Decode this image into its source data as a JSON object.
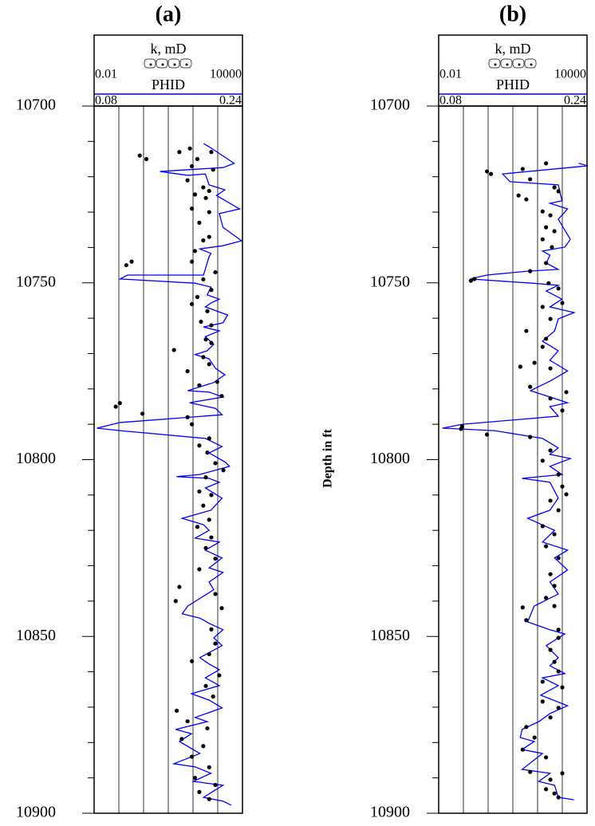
{
  "chart_data": [
    {
      "type": "well-log",
      "title": "(a)",
      "ylim": [
        10700,
        10900
      ],
      "yticks": [
        10700,
        10750,
        10800,
        10850,
        10900
      ],
      "yminorticks": [
        10710,
        10720,
        10730,
        10740,
        10760,
        10770,
        10780,
        10790,
        10810,
        10820,
        10830,
        10840,
        10860,
        10870,
        10880,
        10890
      ],
      "klim": [
        0.01,
        10000
      ],
      "kticks": [
        0.01,
        0.1,
        1,
        10,
        100,
        1000,
        10000
      ],
      "k_log_scale": true,
      "xlim": [
        0.08,
        0.24
      ],
      "phid": {
        "name": "PHID",
        "color": "#0000ff",
        "depth": [
          10710.6,
          10711.5,
          10716.2,
          10717.4,
          10718.5,
          10719.6,
          10719.2,
          10722.3,
          10723.7,
          10725.3,
          10729.1,
          10730.4,
          10734.3,
          10738.1,
          10739.5,
          10740.4,
          10741.7,
          10742.6,
          10747.8,
          10747.8,
          10748.9,
          10750.1,
          10751.2,
          10753.4,
          10754.6,
          10755.7,
          10756.8,
          10759.1,
          10761.3,
          10762.5,
          10763.6,
          10765.2,
          10767.4,
          10769.2,
          10770.3,
          10771.5,
          10774.2,
          10776.0,
          10778.2,
          10780.5,
          10780.9,
          10782.3,
          10783.9,
          10785.5,
          10787.3,
          10789.5,
          10791.1,
          10791.8,
          10794.0,
          10796.3,
          10798.1,
          10800.8,
          10801.9,
          10804.2,
          10804.8,
          10805.3,
          10806.4,
          10808.0,
          10810.9,
          10814.3,
          10816.6,
          10818.4,
          10820.0,
          10822.2,
          10823.3,
          10825.6,
          10827.8,
          10830.6,
          10831.9,
          10834.6,
          10836.8,
          10841.4,
          10843.6,
          10844.8,
          10846.3,
          10848.1,
          10850.4,
          10852.6,
          10856.0,
          10857.8,
          10859.4,
          10861.7,
          10863.9,
          10866.2,
          10868.0,
          10870.2,
          10872.9,
          10874.1,
          10876.3,
          10877.5,
          10879.7,
          10883.1,
          10886.0,
          10886.9,
          10888.7,
          10891.0,
          10892.1,
          10895.5,
          10896.6,
          10897.7
        ],
        "values": [
          0.198,
          0.204,
          0.231,
          0.219,
          0.151,
          0.181,
          0.2,
          0.204,
          0.221,
          0.212,
          0.237,
          0.215,
          0.219,
          0.239,
          0.219,
          0.194,
          0.206,
          0.204,
          0.198,
          0.116,
          0.108,
          0.189,
          0.206,
          0.202,
          0.215,
          0.206,
          0.2,
          0.224,
          0.219,
          0.198,
          0.215,
          0.2,
          0.209,
          0.202,
          0.189,
          0.204,
          0.211,
          0.221,
          0.209,
          0.181,
          0.204,
          0.219,
          0.183,
          0.211,
          0.218,
          0.108,
          0.083,
          0.108,
          0.2,
          0.218,
          0.204,
          0.222,
          0.226,
          0.194,
          0.169,
          0.204,
          0.215,
          0.2,
          0.218,
          0.206,
          0.175,
          0.198,
          0.204,
          0.189,
          0.215,
          0.2,
          0.218,
          0.204,
          0.219,
          0.204,
          0.209,
          0.181,
          0.175,
          0.194,
          0.204,
          0.219,
          0.209,
          0.218,
          0.194,
          0.204,
          0.215,
          0.2,
          0.215,
          0.185,
          0.204,
          0.218,
          0.189,
          0.202,
          0.168,
          0.185,
          0.172,
          0.194,
          0.166,
          0.189,
          0.206,
          0.187,
          0.219,
          0.198,
          0.219,
          0.228
        ]
      },
      "k": {
        "name": "k, mD",
        "color": "#000000",
        "depth": [
          10712,
          10714,
          10715,
          10713,
          10713,
          10715,
          10717,
          10718,
          10721,
          10723,
          10724,
          10725,
          10726,
          10729,
          10730,
          10733,
          10737,
          10738,
          10741,
          10744,
          10745,
          10744,
          10747,
          10749,
          10752,
          10754,
          10756,
          10758,
          10761,
          10762,
          10766,
          10769,
          10767,
          10771,
          10773,
          10775,
          10778,
          10779,
          10782,
          10785,
          10784,
          10787,
          10788,
          10790,
          10794,
          10796,
          10798,
          10801,
          10803,
          10805,
          10809,
          10810,
          10813,
          10817,
          10819,
          10822,
          10825,
          10828,
          10831,
          10836,
          10840,
          10838,
          10842,
          10848,
          10852,
          10855,
          10857,
          10861,
          10864,
          10867,
          10871,
          10874,
          10876,
          10879,
          10881,
          10884,
          10887,
          10890,
          10892,
          10894,
          10896
        ],
        "values": [
          75,
          0.7,
          1.3,
          28,
          550,
          150,
          90,
          650,
          60,
          260,
          450,
          120,
          330,
          90,
          450,
          180,
          450,
          260,
          120,
          0.33,
          0.2,
          90,
          800,
          260,
          550,
          150,
          90,
          380,
          210,
          550,
          330,
          17,
          550,
          260,
          450,
          60,
          950,
          180,
          1450,
          0.075,
          0.11,
          0.9,
          60,
          90,
          450,
          180,
          380,
          800,
          1700,
          330,
          180,
          550,
          260,
          450,
          150,
          550,
          330,
          800,
          180,
          28,
          20,
          800,
          1450,
          550,
          800,
          450,
          90,
          1150,
          330,
          650,
          22,
          60,
          380,
          35,
          260,
          90,
          450,
          120,
          800,
          180,
          450
        ]
      }
    },
    {
      "type": "well-log",
      "title": "(b)",
      "ylabel": "Depth in ft",
      "ylim": [
        10700,
        10900
      ],
      "yticks": [
        10700,
        10750,
        10800,
        10850,
        10900
      ],
      "yminorticks": [
        10710,
        10720,
        10730,
        10740,
        10760,
        10770,
        10780,
        10790,
        10810,
        10820,
        10830,
        10840,
        10860,
        10870,
        10880,
        10890
      ],
      "klim": [
        0.01,
        10000
      ],
      "kticks": [
        0.01,
        0.1,
        1,
        10,
        100,
        1000,
        10000
      ],
      "k_log_scale": true,
      "xlim": [
        0.08,
        0.24
      ],
      "phid": {
        "name": "PHID",
        "color": "#0000ff",
        "depth": [
          10716.2,
          10716.9,
          10719.2,
          10721.4,
          10722.3,
          10726.8,
          10727.5,
          10729.1,
          10732.0,
          10737.7,
          10739.9,
          10741.0,
          10742.2,
          10744.4,
          10746.2,
          10746.7,
          10747.8,
          10748.9,
          10750.1,
          10750.7,
          10752.3,
          10754.6,
          10756.8,
          10758.4,
          10760.2,
          10763.6,
          10766.5,
          10769.2,
          10771.9,
          10774.9,
          10777.8,
          10780.5,
          10781.6,
          10783.9,
          10785.0,
          10787.7,
          10790.0,
          10791.1,
          10791.8,
          10794.0,
          10796.7,
          10798.5,
          10799.7,
          10801.9,
          10804.2,
          10805.3,
          10806.4,
          10810.9,
          10814.3,
          10816.6,
          10820.0,
          10823.3,
          10825.6,
          10827.8,
          10831.2,
          10834.6,
          10838.0,
          10841.4,
          10845.9,
          10848.1,
          10849.3,
          10852.6,
          10856.0,
          10858.3,
          10860.5,
          10861.7,
          10863.9,
          10866.6,
          10869.6,
          10871.8,
          10874.1,
          10876.3,
          10878.6,
          10879.7,
          10882.0,
          10883.1,
          10887.6,
          10888.7,
          10891.0,
          10892.1,
          10895.5,
          10896.2
        ],
        "values": [
          0.231,
          0.241,
          0.149,
          0.157,
          0.209,
          0.213,
          0.2,
          0.219,
          0.209,
          0.222,
          0.216,
          0.192,
          0.2,
          0.196,
          0.209,
          0.176,
          0.132,
          0.114,
          0.181,
          0.209,
          0.196,
          0.213,
          0.2,
          0.226,
          0.209,
          0.205,
          0.192,
          0.209,
          0.2,
          0.219,
          0.2,
          0.179,
          0.192,
          0.219,
          0.2,
          0.209,
          0.106,
          0.084,
          0.14,
          0.192,
          0.209,
          0.2,
          0.222,
          0.2,
          0.213,
          0.17,
          0.2,
          0.209,
          0.2,
          0.176,
          0.205,
          0.192,
          0.219,
          0.205,
          0.219,
          0.2,
          0.209,
          0.183,
          0.176,
          0.2,
          0.216,
          0.196,
          0.209,
          0.2,
          0.216,
          0.192,
          0.209,
          0.19,
          0.219,
          0.2,
          0.188,
          0.17,
          0.168,
          0.183,
          0.17,
          0.192,
          0.17,
          0.2,
          0.188,
          0.205,
          0.209,
          0.226
        ]
      },
      "k": {
        "name": "k, mD",
        "color": "#000000",
        "depth": [
          10718.5,
          10719.2,
          10717.8,
          10716.2,
          10720.7,
          10725.3,
          10723.0,
          10724.1,
          10726.4,
          10729.8,
          10730.9,
          10734.3,
          10735.4,
          10737.7,
          10739.9,
          10744.4,
          10746.7,
          10751.6,
          10750.1,
          10748.9,
          10749.4,
          10755.7,
          10756.8,
          10760.2,
          10763.6,
          10765.8,
          10768.1,
          10772.6,
          10774.2,
          10773.7,
          10779.4,
          10780.9,
          10782.7,
          10786.1,
          10790.6,
          10791.3,
          10792.9,
          10793.6,
          10797.4,
          10800.3,
          10804.2,
          10807.6,
          10809.8,
          10811.6,
          10814.3,
          10818.8,
          10821.1,
          10824.5,
          10827.8,
          10832.4,
          10835.7,
          10839.1,
          10841.8,
          10845.4,
          10841.4,
          10848.1,
          10850.4,
          10853.8,
          10857.2,
          10859.9,
          10862.8,
          10864.4,
          10868.4,
          10870.2,
          10872.9,
          10875.6,
          10878.6,
          10882.0,
          10884.2,
          10888.3,
          10890.5,
          10888.7,
          10893.2,
          10894.4,
          10895.5
        ],
        "values": [
          0.9,
          1.3,
          25,
          220,
          50,
          17,
          480,
          700,
          35,
          160,
          330,
          220,
          480,
          160,
          380,
          220,
          50,
          700,
          280,
          0.28,
          0.2,
          1000,
          160,
          330,
          35,
          220,
          160,
          75,
          330,
          20,
          50,
          1450,
          330,
          1000,
          0.09,
          0.08,
          0.9,
          50,
          330,
          160,
          700,
          1000,
          1450,
          330,
          700,
          160,
          480,
          220,
          700,
          330,
          480,
          220,
          25,
          35,
          480,
          700,
          700,
          330,
          480,
          700,
          160,
          1000,
          160,
          700,
          330,
          35,
          75,
          25,
          220,
          50,
          330,
          1000,
          220,
          480,
          700
        ]
      }
    }
  ]
}
